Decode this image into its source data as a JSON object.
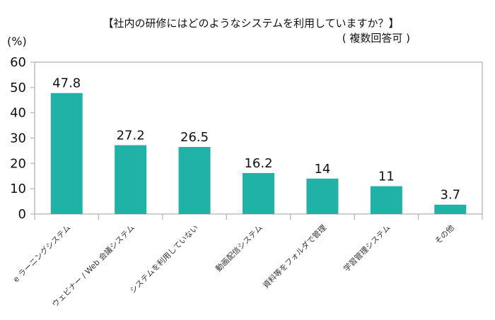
{
  "chart_data": {
    "type": "bar",
    "title": "【社内の研修にはどのようなシステムを利用していますか？】",
    "subtitle": "( 複数回答可 )",
    "ylabel": "(%)",
    "xlabel": "",
    "ylim": [
      0,
      60
    ],
    "yticks": [
      0,
      10,
      20,
      30,
      40,
      50,
      60
    ],
    "grid": false,
    "categories": [
      "e ラーニングシステム",
      "ウェビナー / Web 会議システム",
      "システムを利用していない",
      "動画配信システム",
      "資料等をフォルダで管理",
      "学習管理システム",
      "その他"
    ],
    "values": [
      47.8,
      27.2,
      26.5,
      16.2,
      14,
      11,
      3.7
    ],
    "data_labels": [
      "47.8",
      "27.2",
      "26.5",
      "16.2",
      "14",
      "11",
      "3.7"
    ],
    "bar_color": "#20b2a6",
    "axis_color": "#bfbfbf"
  }
}
